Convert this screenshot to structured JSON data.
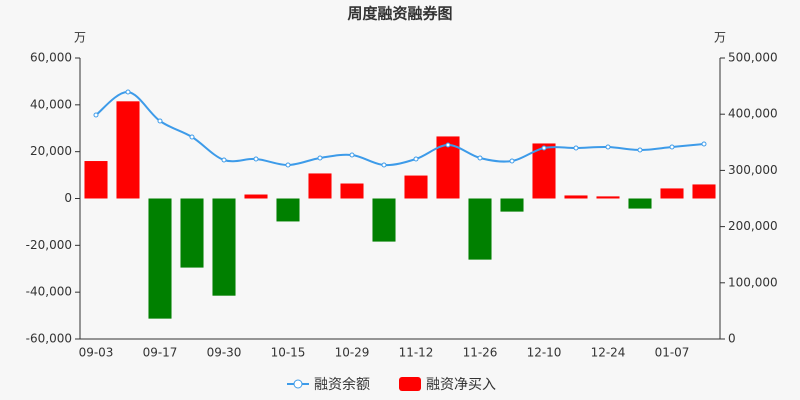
{
  "chart_data": {
    "type": "bar_line",
    "title": "周度融资融券图",
    "y_unit": "万",
    "y2_unit": "万",
    "categories": [
      "09-03",
      null,
      "09-17",
      null,
      "09-30",
      null,
      "10-15",
      null,
      "10-29",
      null,
      "11-12",
      null,
      "11-26",
      null,
      "12-10",
      null,
      "12-24",
      null,
      "01-07",
      null
    ],
    "series": [
      {
        "name": "融资余额",
        "type": "line",
        "axis": "y2",
        "color": "#3d9be9",
        "values": [
          398600,
          439500,
          387900,
          359400,
          318500,
          320300,
          309600,
          322100,
          327400,
          309600,
          320300,
          345200,
          322100,
          316700,
          339900,
          339900,
          341600,
          336300,
          341600,
          347000
        ]
      },
      {
        "name": "融资净买入",
        "type": "bar",
        "color": "#ff0000",
        "negative_color": "#008000",
        "values": [
          16000,
          41500,
          -51300,
          -29500,
          -41500,
          1700,
          -9800,
          10700,
          6400,
          -18400,
          9800,
          26500,
          -26100,
          -5600,
          23500,
          1300,
          900,
          -4300,
          4300,
          6000
        ]
      }
    ],
    "ylim": [
      -60000,
      60000
    ],
    "yticks": [
      {
        "value": -60000,
        "label": "-60,000"
      },
      {
        "value": -40000,
        "label": "-40,000"
      },
      {
        "value": -20000,
        "label": "-20,000"
      },
      0,
      {
        "value": 20000,
        "label": "20,000"
      },
      {
        "value": 40000,
        "label": "40,000"
      },
      {
        "value": 60000,
        "label": "60,000"
      }
    ],
    "y2lim": [
      0,
      500000
    ],
    "y2ticks": [
      0,
      {
        "value": 100000,
        "label": "100,000"
      },
      {
        "value": 200000,
        "label": "200,000"
      },
      {
        "value": 300000,
        "label": "300,000"
      },
      {
        "value": 400000,
        "label": "400,000"
      },
      {
        "value": 500000,
        "label": "500,000"
      }
    ]
  }
}
